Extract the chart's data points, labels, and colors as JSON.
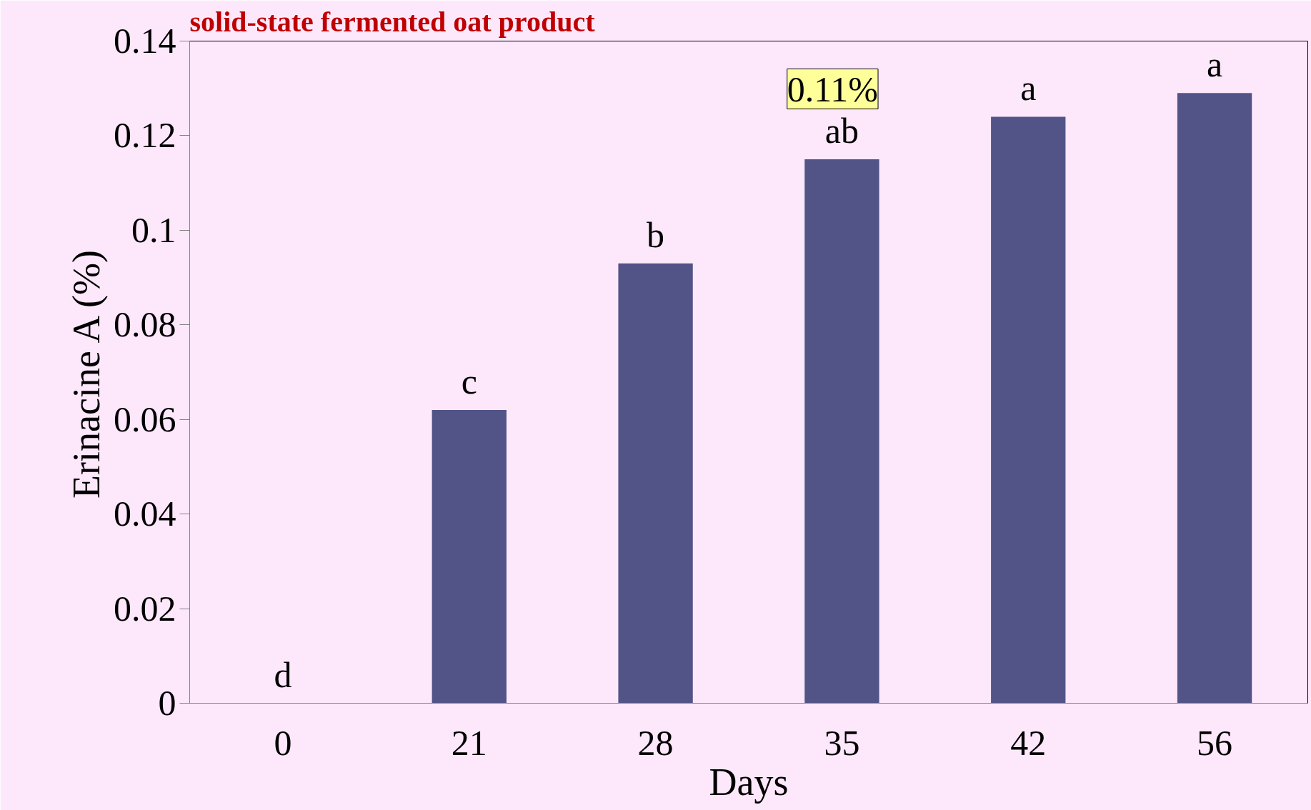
{
  "chart_data": {
    "type": "bar",
    "title": "solid-state fermented oat product",
    "xlabel": "Days",
    "ylabel": "Erinacine A (%)",
    "categories": [
      "0",
      "21",
      "28",
      "35",
      "42",
      "56"
    ],
    "values": [
      0,
      0.062,
      0.093,
      0.115,
      0.124,
      0.129
    ],
    "color": "#525487",
    "ylim": [
      0,
      0.14
    ],
    "yticks": [
      0,
      0.02,
      0.04,
      0.06,
      0.08,
      0.1,
      0.12,
      0.14
    ],
    "grid": false,
    "annotations": [
      {
        "text": "d",
        "x": "0",
        "y": 0
      },
      {
        "text": "c",
        "x": "21",
        "y": 0.062
      },
      {
        "text": "b",
        "x": "28",
        "y": 0.093
      },
      {
        "text": "ab",
        "x": "35",
        "y": 0.115
      },
      {
        "text": "a",
        "x": "42",
        "y": 0.124
      },
      {
        "text": "a",
        "x": "56",
        "y": 0.129
      },
      "0.11%"
    ]
  }
}
